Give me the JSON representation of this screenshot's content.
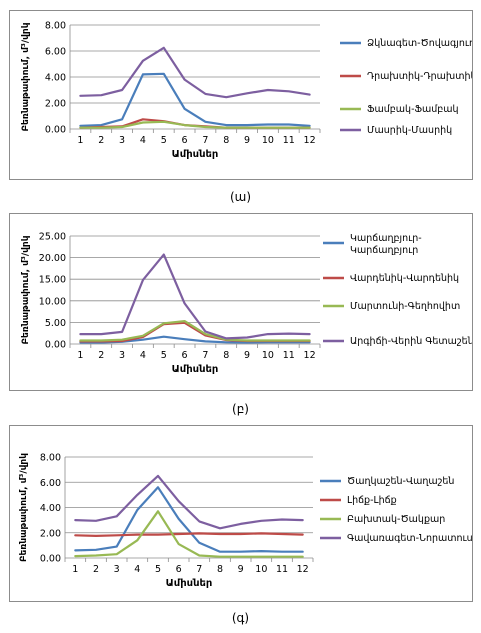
{
  "common": {
    "xlabel": "Ամիսներ",
    "ylabel": "Բեռնաթափում, մ³/վրկ"
  },
  "chart_data": [
    {
      "type": "line",
      "caption": "(ա)",
      "xlabel": "Ամիսներ",
      "ylabel": "Բեռնաթափում, մ³/վրկ",
      "categories": [
        "1",
        "2",
        "3",
        "4",
        "5",
        "6",
        "7",
        "8",
        "9",
        "10",
        "11",
        "12"
      ],
      "ylim": [
        0,
        8
      ],
      "yticks": [
        "0.00",
        "2.00",
        "4.00",
        "6.00",
        "8.00"
      ],
      "grid": true,
      "legend": "right",
      "series": [
        {
          "name": "Ձկնագետ-Ծովագյուղ",
          "color": "#4a7ebb",
          "values": [
            0.25,
            0.3,
            0.75,
            4.2,
            4.25,
            1.55,
            0.55,
            0.3,
            0.3,
            0.35,
            0.35,
            0.25
          ]
        },
        {
          "name": "Դրախտիկ-Դրախտիկ",
          "color": "#be4b48",
          "values": [
            0.1,
            0.15,
            0.2,
            0.75,
            0.6,
            0.3,
            0.2,
            0.1,
            0.1,
            0.1,
            0.1,
            0.1
          ]
        },
        {
          "name": "Ֆամբակ-Ֆամբակ",
          "color": "#98b954",
          "values": [
            0.1,
            0.1,
            0.15,
            0.5,
            0.55,
            0.3,
            0.15,
            0.1,
            0.1,
            0.1,
            0.1,
            0.1
          ]
        },
        {
          "name": "Մասրիկ-Մասրիկ",
          "color": "#7d5fa0",
          "values": [
            2.55,
            2.6,
            3.0,
            5.25,
            6.25,
            3.8,
            2.7,
            2.45,
            2.75,
            3.0,
            2.9,
            2.65
          ]
        }
      ]
    },
    {
      "type": "line",
      "caption": "(բ)",
      "xlabel": "Ամիսներ",
      "ylabel": "Բեռնաթափում, մ³/վրկ",
      "categories": [
        "1",
        "2",
        "3",
        "4",
        "5",
        "6",
        "7",
        "8",
        "9",
        "10",
        "11",
        "12"
      ],
      "ylim": [
        0,
        25
      ],
      "yticks": [
        "0.00",
        "5.00",
        "10.00",
        "15.00",
        "20.00",
        "25.00"
      ],
      "grid": true,
      "legend": "right",
      "series": [
        {
          "name": "Կարճաղբյուր-Կարճաղբյուր",
          "color": "#4a7ebb",
          "values": [
            0.35,
            0.35,
            0.5,
            1.0,
            1.7,
            1.1,
            0.6,
            0.4,
            0.35,
            0.4,
            0.4,
            0.4
          ]
        },
        {
          "name": "Վարդենիկ-Վարդենիկ",
          "color": "#be4b48",
          "values": [
            0.6,
            0.6,
            0.7,
            1.6,
            4.6,
            4.9,
            2.0,
            0.9,
            0.7,
            0.7,
            0.7,
            0.7
          ]
        },
        {
          "name": "Մարտունի-Գեղհովիտ",
          "color": "#98b954",
          "values": [
            0.8,
            0.8,
            1.0,
            1.9,
            4.8,
            5.3,
            2.3,
            1.0,
            0.8,
            0.8,
            0.8,
            0.8
          ]
        },
        {
          "name": "Արգիճի-Վերին Գետաշեն",
          "color": "#7d5fa0",
          "values": [
            2.3,
            2.3,
            2.8,
            14.8,
            20.7,
            9.4,
            2.9,
            1.3,
            1.5,
            2.3,
            2.4,
            2.3
          ]
        }
      ]
    },
    {
      "type": "line",
      "caption": "(գ)",
      "xlabel": "Ամիսներ",
      "ylabel": "Բեռնաթափում, մ³/վրկ",
      "categories": [
        "1",
        "2",
        "3",
        "4",
        "5",
        "6",
        "7",
        "8",
        "9",
        "10",
        "11",
        "12"
      ],
      "ylim": [
        0,
        8
      ],
      "yticks": [
        "0.00",
        "2.00",
        "4.00",
        "6.00",
        "8.00"
      ],
      "grid": true,
      "legend": "right",
      "series": [
        {
          "name": "Ծաղկաշեն-Վաղաշեն",
          "color": "#4a7ebb",
          "values": [
            0.6,
            0.65,
            0.9,
            3.8,
            5.6,
            3.1,
            1.2,
            0.5,
            0.5,
            0.55,
            0.5,
            0.5
          ]
        },
        {
          "name": "Լիճք-Լիճք",
          "color": "#be4b48",
          "values": [
            1.8,
            1.75,
            1.8,
            1.85,
            1.85,
            1.9,
            1.95,
            1.9,
            1.9,
            1.95,
            1.9,
            1.85
          ]
        },
        {
          "name": "Բախտակ-Ծակքար",
          "color": "#98b954",
          "values": [
            0.15,
            0.2,
            0.3,
            1.4,
            3.7,
            1.1,
            0.2,
            0.1,
            0.1,
            0.1,
            0.1,
            0.1
          ]
        },
        {
          "name": "Գավառագետ-Նորատուս",
          "color": "#7d5fa0",
          "values": [
            3.0,
            2.95,
            3.3,
            5.0,
            6.5,
            4.5,
            2.9,
            2.35,
            2.7,
            2.95,
            3.05,
            3.0
          ]
        }
      ]
    }
  ]
}
